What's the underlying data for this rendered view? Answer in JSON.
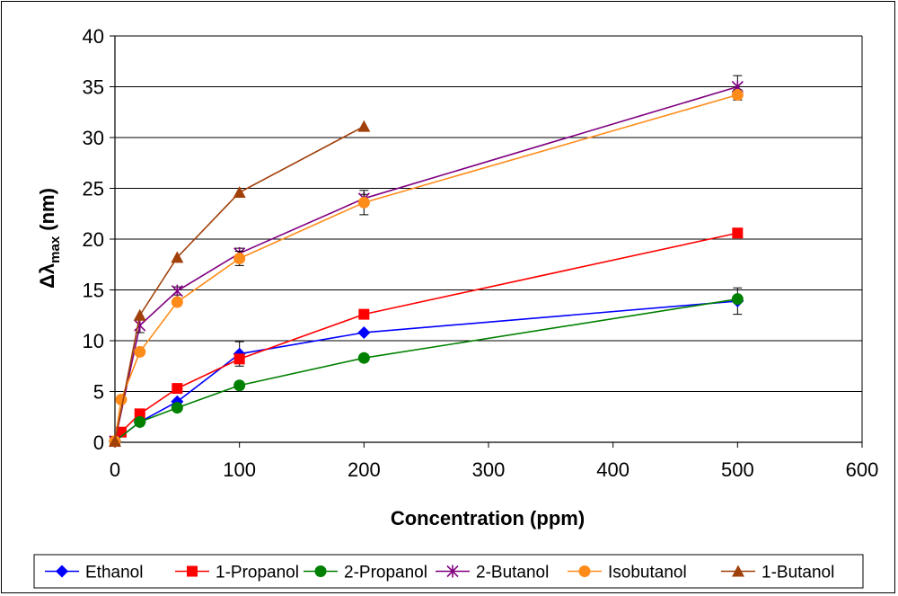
{
  "chart_data": {
    "type": "line",
    "title": "",
    "xlabel": "Concentration (ppm)",
    "ylabel": {
      "prefix": "Δλ",
      "sub": "max",
      "suffix": " (nm)"
    },
    "xlim": [
      0,
      600
    ],
    "ylim": [
      0,
      40
    ],
    "xticks": [
      0,
      100,
      200,
      300,
      400,
      500,
      600
    ],
    "yticks": [
      0,
      5,
      10,
      15,
      20,
      25,
      30,
      35,
      40
    ],
    "grid": "horizontal",
    "legend_position": "bottom",
    "series": [
      {
        "name": "Ethanol",
        "color": "#0000FF",
        "marker": "diamond",
        "x": [
          0,
          20,
          50,
          100,
          200,
          500
        ],
        "y": [
          0.1,
          2.0,
          4.0,
          8.7,
          10.8,
          13.9
        ],
        "err": [
          0,
          0,
          0,
          1.2,
          0,
          1.3
        ]
      },
      {
        "name": "1-Propanol",
        "color": "#FF0000",
        "marker": "square",
        "x": [
          0,
          5,
          20,
          50,
          100,
          200,
          500
        ],
        "y": [
          0.1,
          1.0,
          2.8,
          5.3,
          8.2,
          12.6,
          20.6
        ],
        "err": [
          0,
          0,
          0,
          0,
          0,
          0,
          0
        ]
      },
      {
        "name": "2-Propanol",
        "color": "#008000",
        "marker": "circle",
        "x": [
          0,
          20,
          50,
          100,
          200,
          500
        ],
        "y": [
          0.1,
          2.0,
          3.4,
          5.6,
          8.3,
          14.1
        ],
        "err": [
          0,
          0,
          0,
          0,
          0,
          0
        ]
      },
      {
        "name": "2-Butanol",
        "color": "#800080",
        "marker": "star",
        "x": [
          0,
          20,
          50,
          100,
          200,
          500
        ],
        "y": [
          0.1,
          11.5,
          14.9,
          18.6,
          24.0,
          35.0
        ],
        "err": [
          0,
          0.7,
          0.4,
          0.5,
          0.4,
          1.1
        ]
      },
      {
        "name": "Isobutanol",
        "color": "#FF8C1A",
        "marker": "circle",
        "x": [
          0,
          5,
          20,
          50,
          100,
          200,
          500
        ],
        "y": [
          0.1,
          4.2,
          8.9,
          13.8,
          18.1,
          23.6,
          34.2
        ],
        "err": [
          0,
          0,
          0,
          0,
          0.7,
          1.2,
          0.5
        ]
      },
      {
        "name": "1-Butanol",
        "color": "#A0400A",
        "marker": "triangle",
        "x": [
          0,
          20,
          50,
          100,
          200
        ],
        "y": [
          0.1,
          12.5,
          18.2,
          24.6,
          31.1
        ],
        "err": [
          0,
          0,
          0,
          0,
          0
        ]
      }
    ]
  }
}
